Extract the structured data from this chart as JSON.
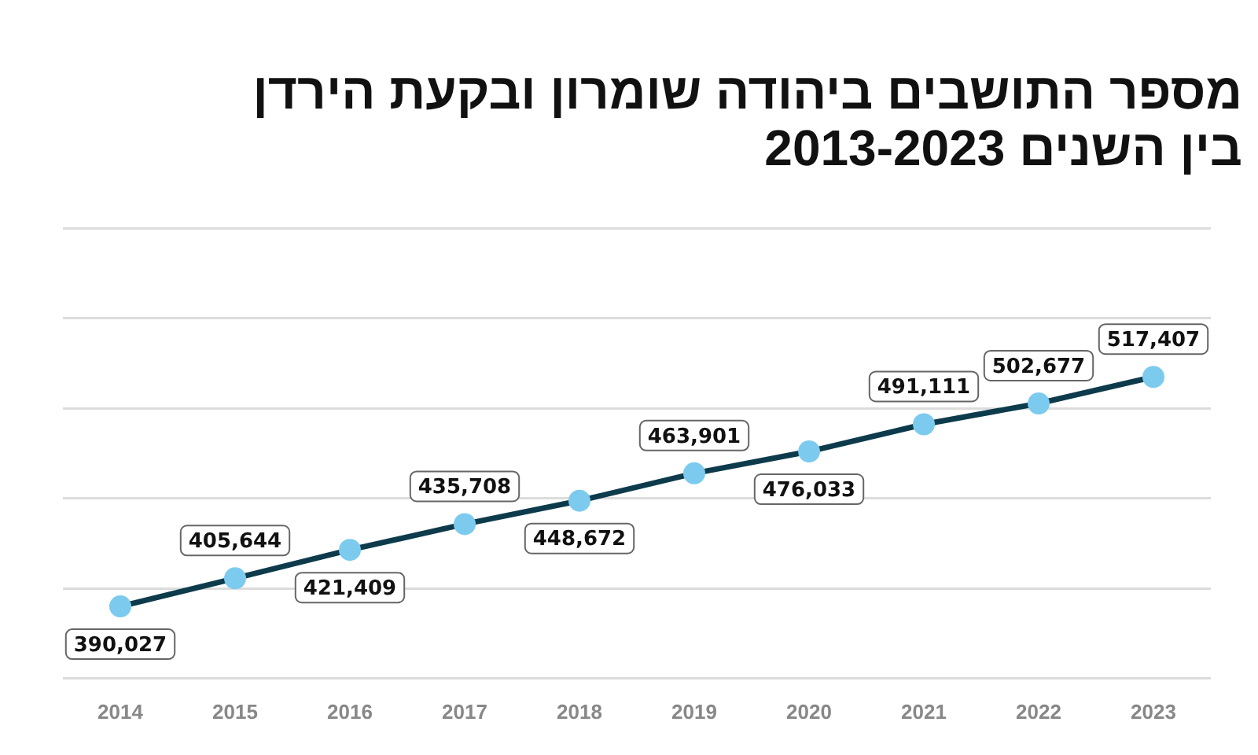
{
  "chart_data": {
    "type": "line",
    "title": "מספר התושבים ביהודה שומרון ובקעת הירדן",
    "subtitle": "בין השנים 2013-2023",
    "categories": [
      "2014",
      "2015",
      "2016",
      "2017",
      "2018",
      "2019",
      "2020",
      "2021",
      "2022",
      "2023"
    ],
    "series": [
      {
        "color": "#0d3b4c",
        "colors": [
          "#7ccbef",
          "#7ccbef",
          "#7ccbef",
          "#7ccbef",
          "#7ccbef",
          "#7ccbef",
          "#7ccbef",
          "#7ccbef",
          "#7ccbef",
          "#7ccbef"
        ],
        "values": [
          390027,
          405644,
          421409,
          435708,
          448672,
          463901,
          476033,
          491111,
          502677,
          517407
        ],
        "value_labels": [
          "390,027",
          "405,644",
          "421,409",
          "435,708",
          "448,672",
          "463,901",
          "476,033",
          "491,111",
          "502,677",
          "517,407"
        ]
      }
    ],
    "tick_labels": "x",
    "grid": "y",
    "legend": false,
    "marker": "circle",
    "line_style": "solid"
  }
}
